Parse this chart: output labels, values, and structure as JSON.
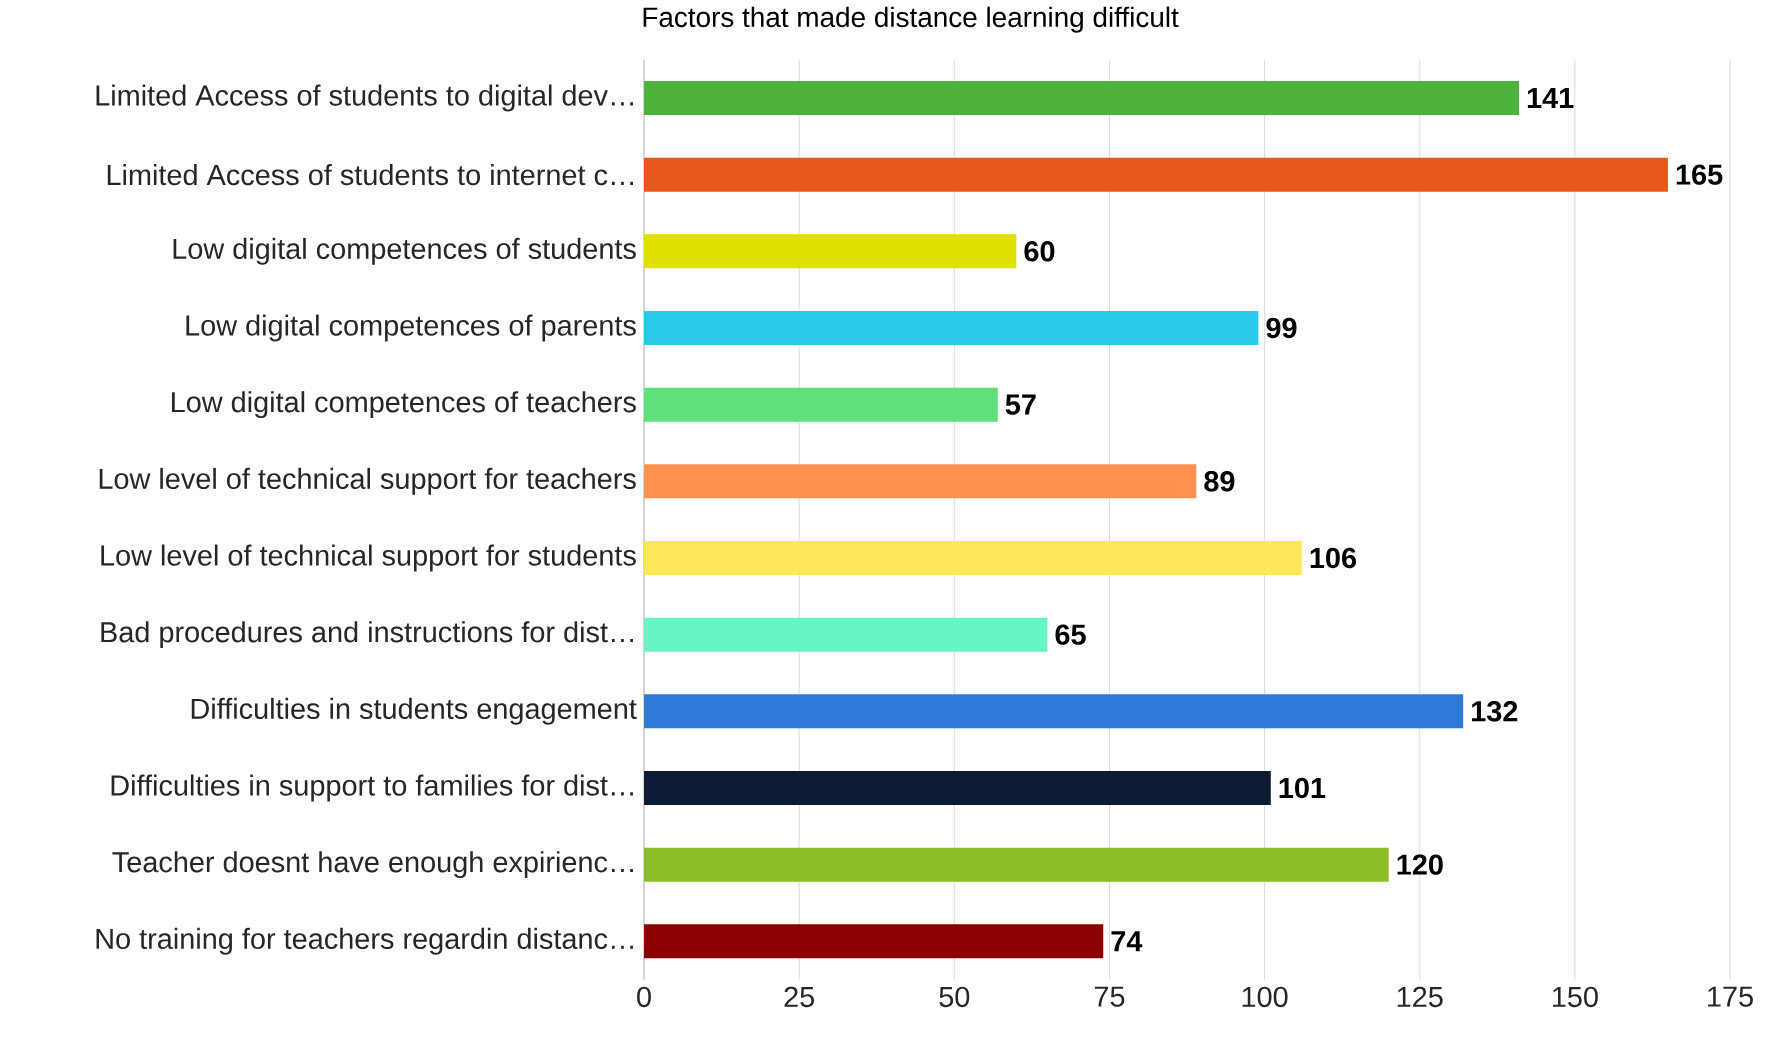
{
  "chart_data": {
    "type": "bar",
    "orientation": "horizontal",
    "title": "Factors that made distance learning difficult",
    "categories": [
      "Limited Access of students to digital dev…",
      "Limited Access of students to internet c…",
      "Low digital competences of students",
      "Low digital competences of parents",
      "Low digital competences of teachers",
      "Low level of technical support for teachers",
      "Low level of technical support for students",
      "Bad procedures and instructions for dist…",
      "Difficulties in students engagement",
      "Difficulties in support to families for dist…",
      "Teacher doesnt have enough expirienc…",
      "No training for teachers regardin distanc…"
    ],
    "values": [
      141,
      165,
      60,
      99,
      57,
      89,
      106,
      65,
      132,
      101,
      120,
      74
    ],
    "colors": [
      "#4db33d",
      "#e8581c",
      "#dfe000",
      "#29c9e8",
      "#5ee07a",
      "#ff9150",
      "#ffe75a",
      "#66f5c6",
      "#2f7ad8",
      "#0d1a33",
      "#8bbd26",
      "#8b0000"
    ],
    "xlim": [
      0,
      175
    ],
    "xticks": [
      0,
      25,
      50,
      75,
      100,
      125,
      150,
      175
    ],
    "grid": "x",
    "data_labels": true
  }
}
